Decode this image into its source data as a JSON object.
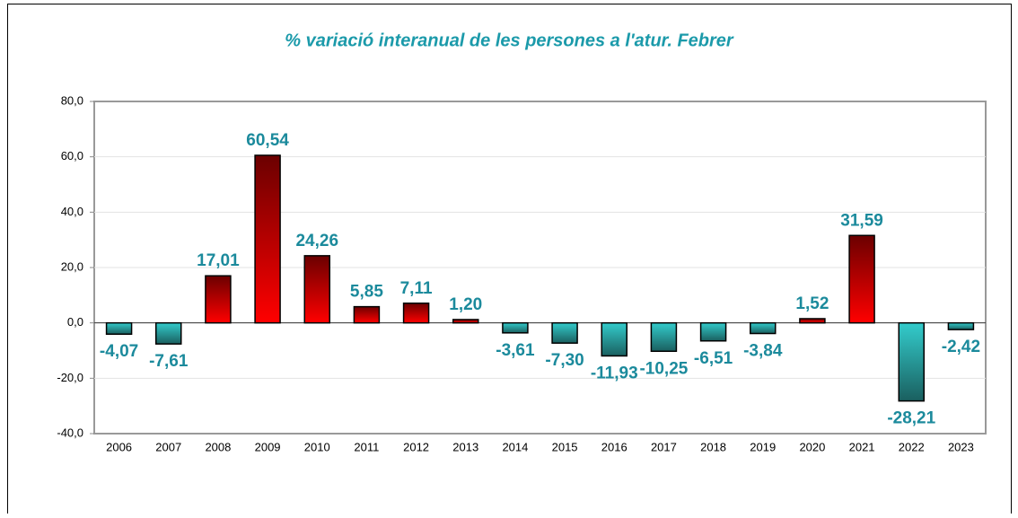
{
  "chart_data": {
    "type": "bar",
    "title": "% variació interanual de les persones a l'atur. Febrer",
    "categories": [
      "2006",
      "2007",
      "2008",
      "2009",
      "2010",
      "2011",
      "2012",
      "2013",
      "2014",
      "2015",
      "2016",
      "2017",
      "2018",
      "2019",
      "2020",
      "2021",
      "2022",
      "2023"
    ],
    "values": [
      -4.07,
      -7.61,
      17.01,
      60.54,
      24.26,
      5.85,
      7.11,
      1.2,
      -3.61,
      -7.3,
      -11.93,
      -10.25,
      -6.51,
      -3.84,
      1.52,
      31.59,
      -28.21,
      -2.42
    ],
    "value_labels": [
      "-4,07",
      "-7,61",
      "17,01",
      "60,54",
      "24,26",
      "5,85",
      "7,11",
      "1,20",
      "-3,61",
      "-7,30",
      "-11,93",
      "-10,25",
      "-6,51",
      "-3,84",
      "1,52",
      "31,59",
      "-28,21",
      "-2,42"
    ],
    "positive_color": "#ff0000",
    "negative_color": "#33cccc",
    "ylim": [
      -40,
      80
    ],
    "yticks": [
      {
        "value": -40,
        "label": "-40,0"
      },
      {
        "value": -20,
        "label": "-20,0"
      },
      {
        "value": 0,
        "label": "0,0"
      },
      {
        "value": 20,
        "label": "20,0"
      },
      {
        "value": 40,
        "label": "40,0"
      },
      {
        "value": 60,
        "label": "60,0"
      },
      {
        "value": 80,
        "label": "80,0"
      }
    ],
    "grid": true
  }
}
